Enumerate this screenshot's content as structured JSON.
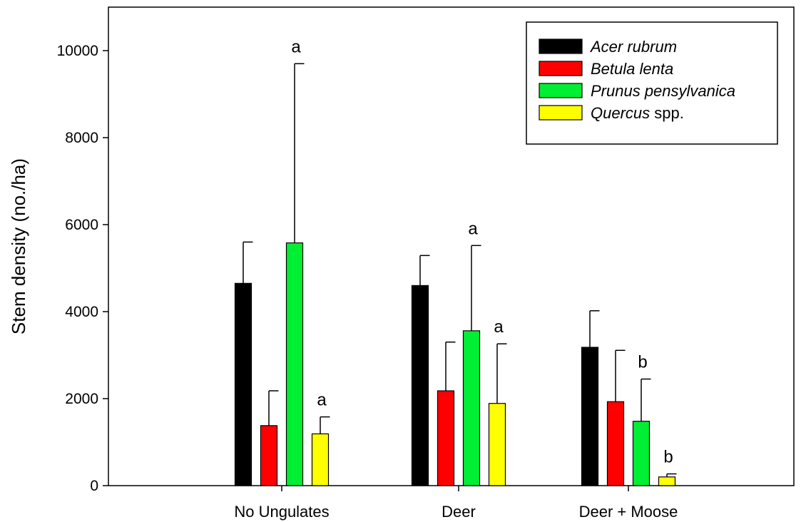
{
  "chart_data": {
    "type": "bar",
    "ylabel": "Stem density (no./ha)",
    "ylim": [
      0,
      11000
    ],
    "yticks": [
      0,
      2000,
      4000,
      6000,
      8000,
      10000
    ],
    "categories": [
      "No Ungulates",
      "Deer",
      "Deer + Moose"
    ],
    "series": [
      {
        "name": "Acer rubrum",
        "italic": "Acer rubrum",
        "suffix": "",
        "color": "#000000",
        "values": [
          4650,
          4600,
          3180
        ],
        "errors": [
          950,
          690,
          840
        ],
        "sig": [
          "",
          "",
          ""
        ]
      },
      {
        "name": "Betula lenta",
        "italic": "Betula lenta",
        "suffix": "",
        "color": "#ff0000",
        "values": [
          1380,
          2180,
          1930
        ],
        "errors": [
          800,
          1120,
          1180
        ],
        "sig": [
          "",
          "",
          ""
        ]
      },
      {
        "name": "Prunus pensylvanica",
        "italic": "Prunus pensylvanica",
        "suffix": "",
        "color": "#00ee33",
        "values": [
          5580,
          3560,
          1480
        ],
        "errors": [
          4120,
          1960,
          970
        ],
        "sig": [
          "a",
          "a",
          "b"
        ]
      },
      {
        "name": "Quercus spp.",
        "italic": "Quercus",
        "suffix": " spp.",
        "color": "#ffff00",
        "values": [
          1190,
          1890,
          200
        ],
        "errors": [
          390,
          1370,
          70
        ],
        "sig": [
          "a",
          "a",
          "b"
        ]
      }
    ],
    "legend_position": "top-right",
    "grid": false
  }
}
